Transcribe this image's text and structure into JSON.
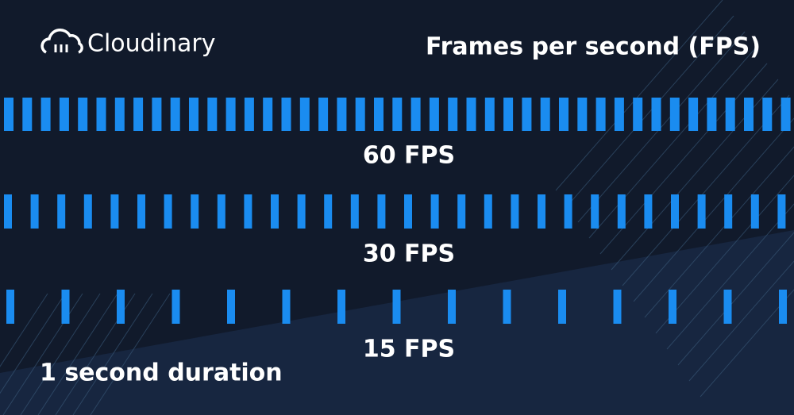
{
  "header": {
    "logo": "Cloudinary",
    "title": "Frames per second (FPS)"
  },
  "rows": [
    {
      "label": "60 FPS"
    },
    {
      "label": "30 FPS"
    },
    {
      "label": "15 FPS"
    }
  ],
  "footer": "1 second duration"
}
